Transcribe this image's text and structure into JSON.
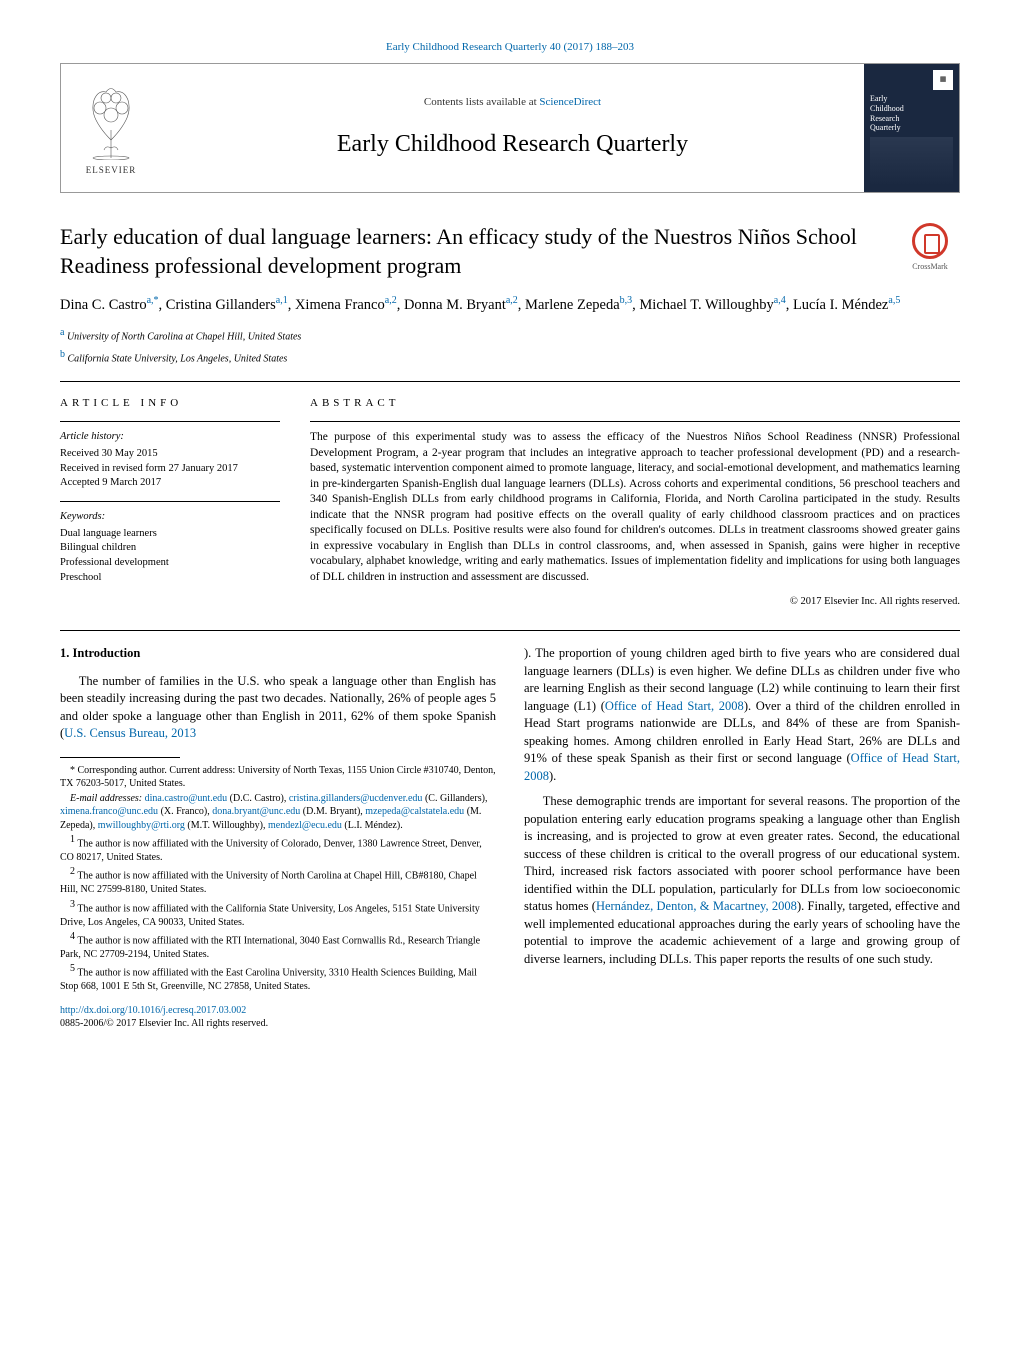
{
  "header": {
    "pageRangeLink": "Early Childhood Research Quarterly 40 (2017) 188–203",
    "contentsPrefix": "Contents lists available at ",
    "contentsLink": "ScienceDirect",
    "journalTitle": "Early Childhood Research Quarterly",
    "elsevierLabel": "ELSEVIER",
    "coverLines": [
      "Early",
      "Childhood",
      "Research",
      "Quarterly"
    ]
  },
  "crossmark": "CrossMark",
  "title": "Early education of dual language learners: An efficacy study of the Nuestros Niños School Readiness professional development program",
  "authors": [
    {
      "name": "Dina C. Castro",
      "marks": "a,*"
    },
    {
      "name": "Cristina Gillanders",
      "marks": "a,1"
    },
    {
      "name": "Ximena Franco",
      "marks": "a,2"
    },
    {
      "name": "Donna M. Bryant",
      "marks": "a,2"
    },
    {
      "name": "Marlene Zepeda",
      "marks": "b,3"
    },
    {
      "name": "Michael T. Willoughby",
      "marks": "a,4"
    },
    {
      "name": "Lucía I. Méndez",
      "marks": "a,5"
    }
  ],
  "affiliations": [
    {
      "mark": "a",
      "text": "University of North Carolina at Chapel Hill, United States"
    },
    {
      "mark": "b",
      "text": "California State University, Los Angeles, United States"
    }
  ],
  "articleInfo": {
    "heading": "article info",
    "historyLabel": "Article history:",
    "history": [
      "Received 30 May 2015",
      "Received in revised form 27 January 2017",
      "Accepted 9 March 2017"
    ],
    "keywordsLabel": "Keywords:",
    "keywords": [
      "Dual language learners",
      "Bilingual children",
      "Professional development",
      "Preschool"
    ]
  },
  "abstract": {
    "heading": "abstract",
    "text": "The purpose of this experimental study was to assess the efficacy of the Nuestros Niños School Readiness (NNSR) Professional Development Program, a 2-year program that includes an integrative approach to teacher professional development (PD) and a research-based, systematic intervention component aimed to promote language, literacy, and social-emotional development, and mathematics learning in pre-kindergarten Spanish-English dual language learners (DLLs). Across cohorts and experimental conditions, 56 preschool teachers and 340 Spanish-English DLLs from early childhood programs in California, Florida, and North Carolina participated in the study. Results indicate that the NNSR program had positive effects on the overall quality of early childhood classroom practices and on practices specifically focused on DLLs. Positive results were also found for children's outcomes. DLLs in treatment classrooms showed greater gains in expressive vocabulary in English than DLLs in control classrooms, and, when assessed in Spanish, gains were higher in receptive vocabulary, alphabet knowledge, writing and early mathematics. Issues of implementation fidelity and implications for using both languages of DLL children in instruction and assessment are discussed.",
    "copyright": "© 2017 Elsevier Inc. All rights reserved."
  },
  "body": {
    "sectionHeading": "1. Introduction",
    "para1a": "The number of families in the U.S. who speak a language other than English has been steadily increasing during the past two decades. Nationally, 26% of people ages 5 and older spoke a language other than English in 2011, 62% of them spoke Spanish (",
    "para1link1": "U.S. Census Bureau, 2013",
    "para1b": "). The proportion of young children aged birth to five years who are considered dual language learners (DLLs) is even higher. We define DLLs as children under five who are learning English as their second language (L2) while continuing to learn their first language (L1) (",
    "para1link2": "Office of Head Start, 2008",
    "para1c": "). Over a third of the children enrolled in Head Start programs nationwide are DLLs, and 84% of these are from Spanish-speaking homes. Among children enrolled in Early Head Start, 26% are DLLs and 91% of these speak Spanish as their first or second language (",
    "para1link3": "Office of Head Start, 2008",
    "para1d": ").",
    "para2a": "These demographic trends are important for several reasons. The proportion of the population entering early education programs speaking a language other than English is increasing, and is projected to grow at even greater rates. Second, the educational success of these children is critical to the overall progress of our educational system. Third, increased risk factors associated with poorer school performance have been identified within the DLL population, particularly for DLLs from low socioeconomic status homes (",
    "para2link1": "Hernández, Denton, & Macartney, 2008",
    "para2b": "). Finally, targeted, effective and well implemented educational approaches during the early years of schooling have the potential to improve the academic achievement of a large and growing group of diverse learners, including DLLs. This paper reports the results of one such study."
  },
  "footnotes": {
    "corr": "* Corresponding author. Current address: University of North Texas, 1155 Union Circle #310740, Denton, TX 76203-5017, United States.",
    "emailLabel": "E-mail addresses:",
    "emails": [
      {
        "addr": "dina.castro@unt.edu",
        "who": "(D.C. Castro)"
      },
      {
        "addr": "cristina.gillanders@ucdenver.edu",
        "who": "(C. Gillanders)"
      },
      {
        "addr": "ximena.franco@unc.edu",
        "who": "(X. Franco)"
      },
      {
        "addr": "dona.bryant@unc.edu",
        "who": "(D.M. Bryant)"
      },
      {
        "addr": "mzepeda@calstatela.edu",
        "who": "(M. Zepeda)"
      },
      {
        "addr": "mwilloughby@rti.org",
        "who": "(M.T. Willoughby)"
      },
      {
        "addr": "mendezl@ecu.edu",
        "who": "(L.I. Méndez)"
      }
    ],
    "notes": [
      {
        "mark": "1",
        "text": "The author is now affiliated with the University of Colorado, Denver, 1380 Lawrence Street, Denver, CO 80217, United States."
      },
      {
        "mark": "2",
        "text": "The author is now affiliated with the University of North Carolina at Chapel Hill, CB#8180, Chapel Hill, NC 27599-8180, United States."
      },
      {
        "mark": "3",
        "text": "The author is now affiliated with the California State University, Los Angeles, 5151 State University Drive, Los Angeles, CA 90033, United States."
      },
      {
        "mark": "4",
        "text": "The author is now affiliated with the RTI International, 3040 East Cornwallis Rd., Research Triangle Park, NC 27709-2194, United States."
      },
      {
        "mark": "5",
        "text": "The author is now affiliated with the East Carolina University, 3310 Health Sciences Building, Mail Stop 668, 1001 E 5th St, Greenville, NC 27858, United States."
      }
    ]
  },
  "doi": {
    "link": "http://dx.doi.org/10.1016/j.ecresq.2017.03.002",
    "issn": "0885-2006/© 2017 Elsevier Inc. All rights reserved."
  },
  "colors": {
    "link": "#0066aa",
    "coverBg": "#1a2840",
    "crossmarkRed": "#d0382a"
  }
}
